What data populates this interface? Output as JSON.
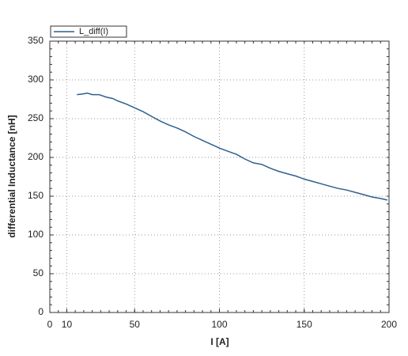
{
  "chart_data": {
    "type": "line",
    "x_label": "I [A]",
    "y_label": "differential Inductance [nH]",
    "xlim": [
      0,
      200
    ],
    "xticks": [
      0,
      10,
      50,
      100,
      150,
      200
    ],
    "ylim": [
      0,
      350
    ],
    "yticks": [
      0,
      50,
      100,
      150,
      200,
      250,
      300,
      350
    ],
    "grid": true,
    "legend": "top-left",
    "x": [
      16,
      20,
      22,
      25,
      29,
      33,
      37,
      40,
      45,
      50,
      55,
      60,
      65,
      70,
      75,
      80,
      85,
      90,
      95,
      100,
      105,
      110,
      115,
      120,
      125,
      130,
      135,
      140,
      145,
      150,
      155,
      160,
      165,
      170,
      175,
      180,
      185,
      190,
      195,
      199
    ],
    "series": [
      {
        "name": "L_diff(I)",
        "color": "#2f5f8f",
        "values": [
          281,
          282,
          283,
          281,
          281,
          278,
          276,
          273,
          269,
          264,
          259,
          253,
          247,
          242,
          238,
          233,
          227,
          222,
          217,
          212,
          208,
          204,
          198,
          193,
          191,
          186,
          182,
          179,
          176,
          172,
          169,
          166,
          163,
          160,
          158,
          155,
          152,
          149,
          147,
          145
        ]
      }
    ]
  }
}
